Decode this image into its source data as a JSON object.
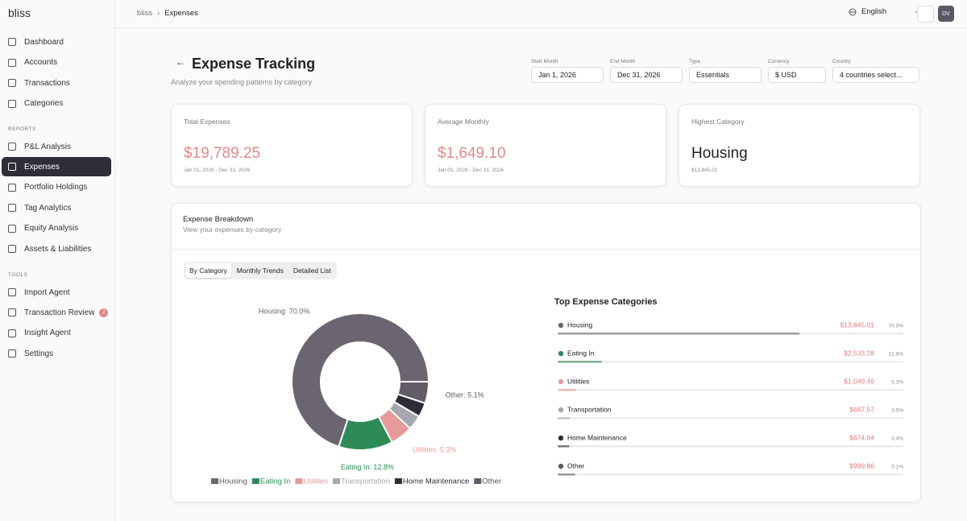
{
  "sidebar": {
    "brand": "bliss",
    "main": [
      "Dashboard",
      "Accounts",
      "Transactions",
      "Categories"
    ],
    "reports_heading": "REPORTS",
    "reports": [
      "P&L Analysis",
      "Expenses",
      "Portfolio Holdings",
      "Tag Analytics",
      "Equity Analysis",
      "Assets & Liabilities"
    ],
    "tools_heading": "TOOLS",
    "tools": [
      {
        "label": "Import Agent"
      },
      {
        "label": "Transaction Review",
        "badge": 2
      },
      {
        "label": "Insight Agent"
      },
      {
        "label": "Settings"
      }
    ]
  },
  "topbar": {
    "breadcrumb": [
      "bliss",
      "Expenses"
    ],
    "separator": "›",
    "language": "English",
    "avatar": "DV"
  },
  "header": {
    "title": "Expense Tracking",
    "subtitle": "Analyze your spending patterns by category"
  },
  "filters": [
    {
      "label": "Start Month",
      "value": "Jan 1, 2026"
    },
    {
      "label": "End Month",
      "value": "Dec 31, 2026"
    },
    {
      "label": "Type",
      "value": "Essentials"
    },
    {
      "label": "Currency",
      "value": "$ USD"
    },
    {
      "label": "Country",
      "value": "4 countries select..."
    }
  ],
  "cards": [
    {
      "label": "Total Expenses",
      "value": "$19,789.25",
      "note": "Jan 01, 2026 - Dec 31, 2026"
    },
    {
      "label": "Average Monthly",
      "value": "$1,649.10",
      "note": "Jan 01, 2026 - Dec 31, 2026"
    },
    {
      "label": "Highest Category",
      "value": "Housing",
      "note": "$13,845.01"
    }
  ],
  "breakdown": {
    "title": "Expense Breakdown",
    "subtitle": "View your expenses by category",
    "tabs": [
      "By Category",
      "Monthly Trends",
      "Detailed List"
    ]
  },
  "chart_data": {
    "type": "pie",
    "donut": true,
    "categories": [
      "Housing",
      "Eating In",
      "Utilities",
      "Transportation",
      "Home Maintenance",
      "Other"
    ],
    "values": [
      70.0,
      12.8,
      5.3,
      3.5,
      3.4,
      5.1
    ],
    "value_labels": [
      "Housing: 70.0%",
      "Eating In: 12.8%",
      "Utilities: 5.3%",
      null,
      null,
      "Other: 5.1%"
    ],
    "colors": [
      "#6b6571",
      "#2e8b57",
      "#e89a9a",
      "#a9a7ae",
      "#2e2c37",
      "#605b67"
    ],
    "legend": "bottom"
  },
  "top_categories": {
    "title": "Top Expense Categories",
    "items": [
      {
        "name": "Housing",
        "amount": "$13,845.01",
        "share": {
          "value": 70.0,
          "label": "70.0%"
        }
      },
      {
        "name": "Eating In",
        "amount": "$2,533.28",
        "share": {
          "value": 12.8,
          "label": "12.8%"
        }
      },
      {
        "name": "Utilities",
        "amount": "$1,049.49",
        "share": {
          "value": 5.3,
          "label": "5.3%"
        }
      },
      {
        "name": "Transportation",
        "amount": "$687.57",
        "share": {
          "value": 3.5,
          "label": "3.5%"
        }
      },
      {
        "name": "Home Maintenance",
        "amount": "$674.04",
        "share": {
          "value": 3.4,
          "label": "3.4%"
        }
      },
      {
        "name": "Other",
        "amount": "$999.86",
        "share": {
          "value": 5.1,
          "label": "5.1%"
        }
      }
    ]
  }
}
